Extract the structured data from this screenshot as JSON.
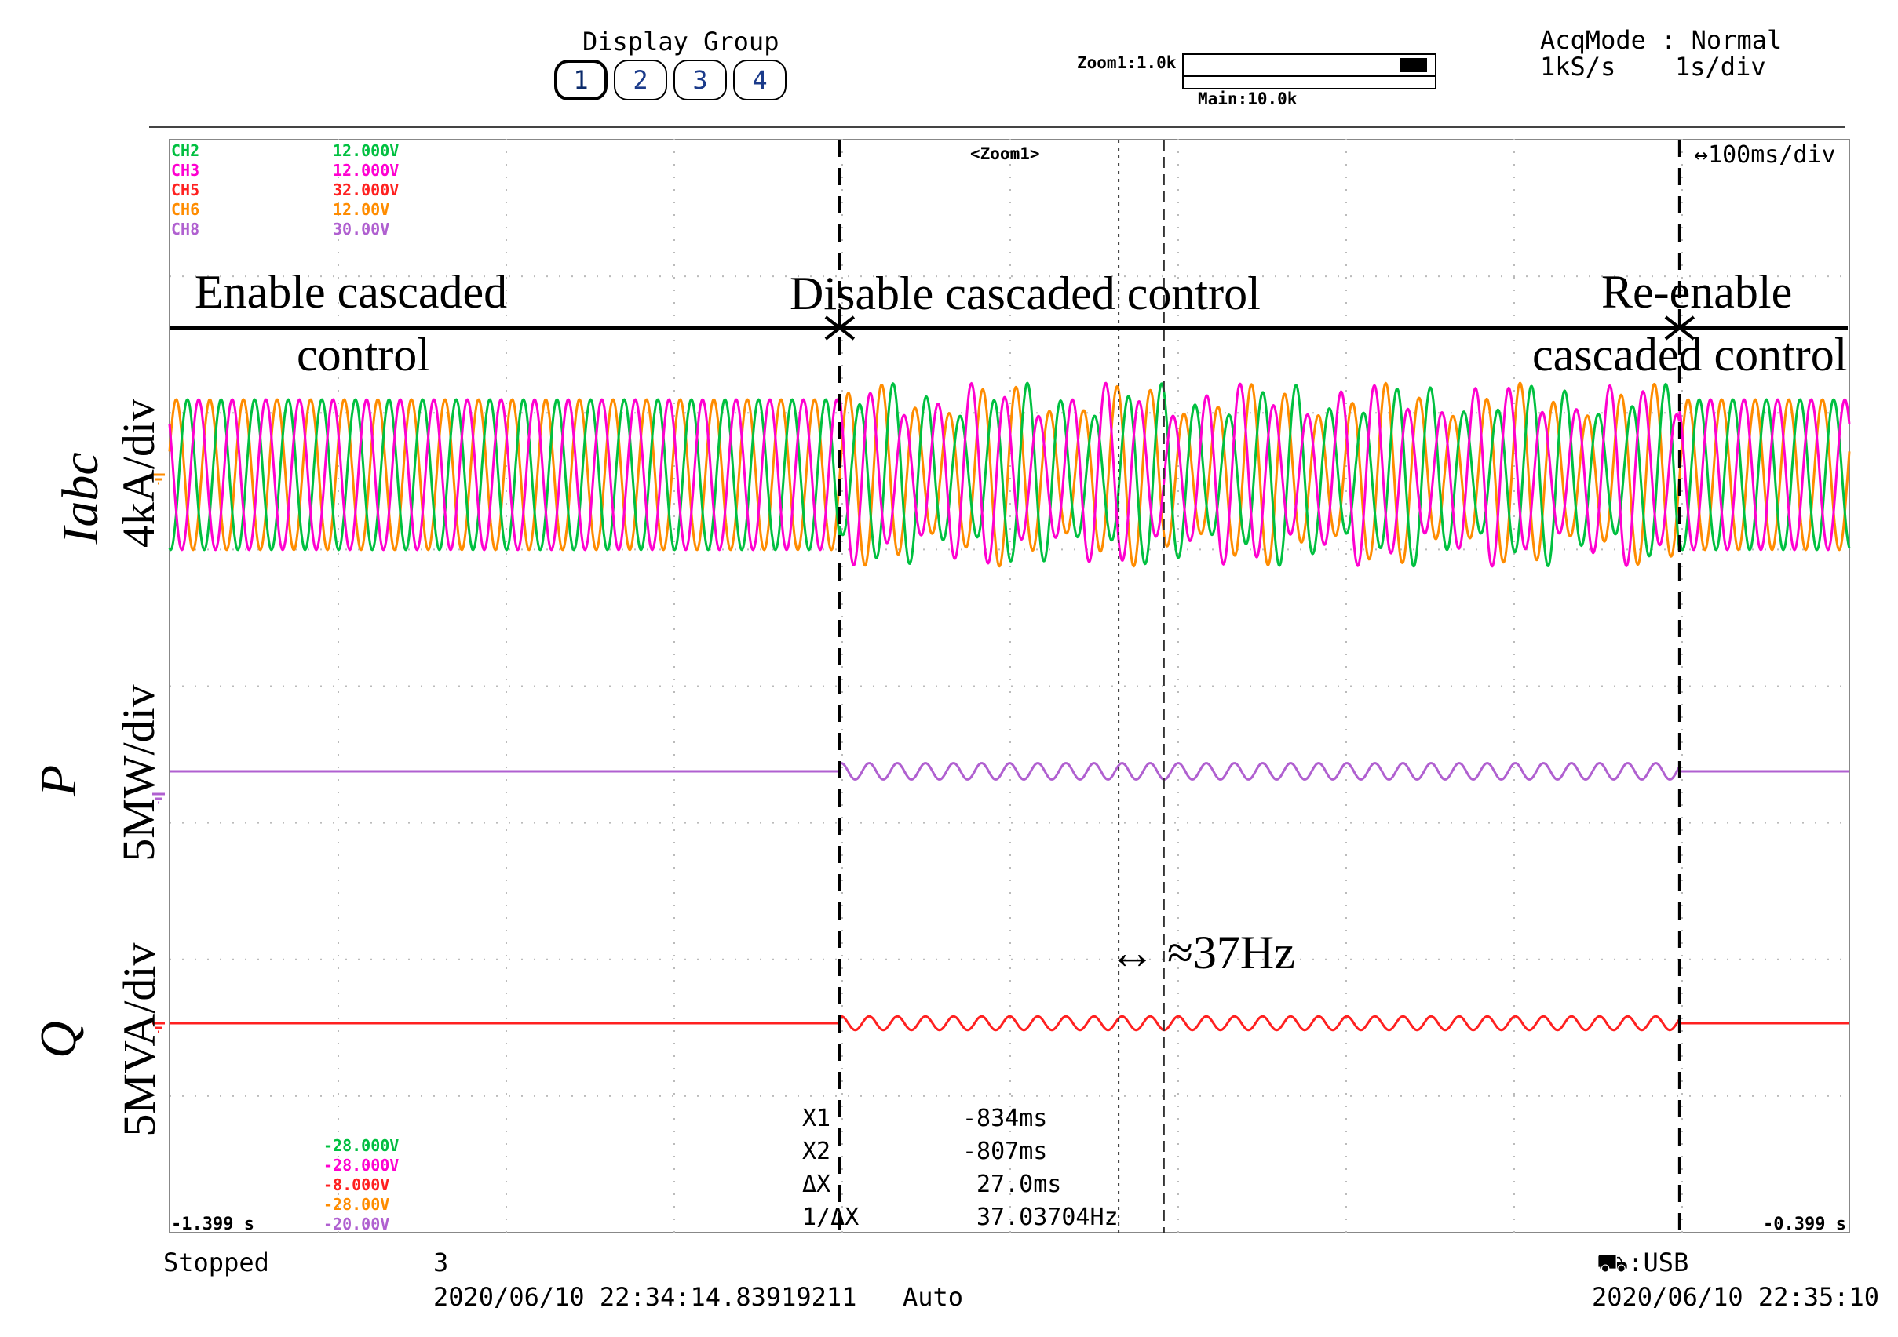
{
  "header": {
    "display_group_label": "Display Group",
    "groups": [
      "1",
      "2",
      "3",
      "4"
    ],
    "active_group": "1",
    "zoom_label": "Zoom1:1.0k",
    "main_label": "Main:10.0k",
    "acq_mode_label": "AcqMode : Normal",
    "sample_rate": "1kS/s",
    "main_timebase": "1s/div",
    "zoom_timebase": "↔100ms/div",
    "zoom_tag": "<Zoom1>"
  },
  "channels_top": [
    {
      "name": "CH2",
      "value": "12.000V",
      "color": "#00c040"
    },
    {
      "name": "CH3",
      "value": "12.000V",
      "color": "#ff00d0"
    },
    {
      "name": "CH5",
      "value": "32.000V",
      "color": "#ff2020"
    },
    {
      "name": "CH6",
      "value": "12.00V",
      "color": "#ff8c00"
    },
    {
      "name": "CH8",
      "value": "30.00V",
      "color": "#b060d0"
    }
  ],
  "channels_bottom": [
    {
      "value": "-28.000V",
      "color": "#00c040"
    },
    {
      "value": "-28.000V",
      "color": "#ff00d0"
    },
    {
      "value": "-8.000V",
      "color": "#ff2020"
    },
    {
      "value": "-28.00V",
      "color": "#ff8c00"
    },
    {
      "value": "-20.00V",
      "color": "#b060d0"
    }
  ],
  "annotations": {
    "enable_line1": "Enable cascaded",
    "enable_line2": "control",
    "disable": "Disable cascaded control",
    "reenable_line1": "Re-enable",
    "reenable_line2": "cascaded control",
    "freq": "↔ ≈37Hz"
  },
  "axis_labels": {
    "iabc_var": "Iabc",
    "iabc_scale": "4kA/div",
    "p_var": "P",
    "p_scale": "5MW/div",
    "q_var": "Q",
    "q_scale": "5MVA/div"
  },
  "measurements": [
    {
      "label": "X1",
      "value": "-834ms"
    },
    {
      "label": "X2",
      "value": "-807ms"
    },
    {
      "label": "ΔX",
      "value": "27.0ms"
    },
    {
      "label": "1/ΔX",
      "value": "37.03704Hz"
    }
  ],
  "time_range": {
    "start": "-1.399 s",
    "end": "-0.399 s"
  },
  "status": {
    "state": "Stopped",
    "count": "3",
    "trigger_time": "2020/06/10 22:34:14.83919211",
    "trigger_mode": "Auto",
    "storage": ":USB",
    "end_time": "2020/06/10 22:35:10"
  },
  "chart_data": {
    "type": "line",
    "x_range_s": [
      -1.399,
      -0.399
    ],
    "events": [
      {
        "name": "disable",
        "t_s": -1.0
      },
      {
        "name": "re-enable",
        "t_s": -0.5
      }
    ],
    "cursors_s": [
      -0.834,
      -0.807
    ],
    "fundamental_hz": 50,
    "oscillation_hz": 37,
    "series": [
      {
        "name": "Iabc phase A",
        "color": "#ff8c00",
        "panel": "Iabc",
        "amplitude_div": 0.55,
        "phase_deg": 0
      },
      {
        "name": "Iabc phase B",
        "color": "#00c040",
        "panel": "Iabc",
        "amplitude_div": 0.55,
        "phase_deg": -120
      },
      {
        "name": "Iabc phase C",
        "color": "#ff00d0",
        "panel": "Iabc",
        "amplitude_div": 0.55,
        "phase_deg": 120
      },
      {
        "name": "P",
        "color": "#b060d0",
        "panel": "P",
        "level_div": 0,
        "osc_amplitude_div": 0.06
      },
      {
        "name": "Q",
        "color": "#ff2020",
        "panel": "Q",
        "level_div": 0,
        "osc_amplitude_div": 0.05
      }
    ]
  }
}
